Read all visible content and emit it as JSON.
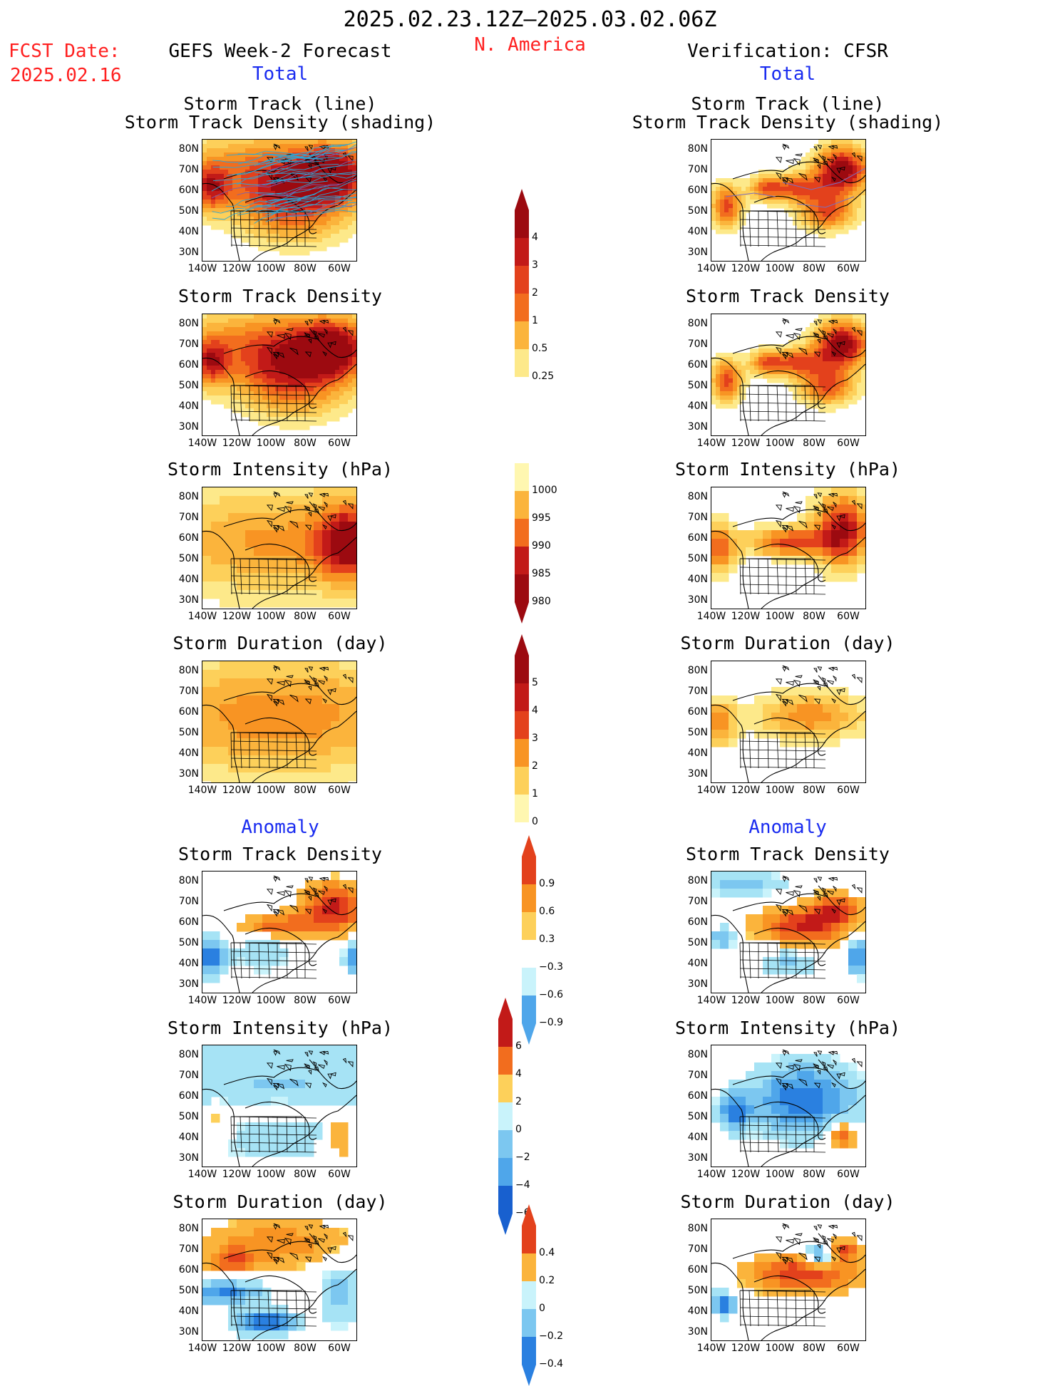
{
  "header": {
    "date_range": "2025.02.23.12Z–2025.03.02.06Z",
    "fcst_label": "FCST Date:",
    "fcst_date": "2025.02.16",
    "region": "N. America",
    "left_title": "GEFS Week-2 Forecast",
    "right_title": "Verification: CFSR",
    "total_label_left": "Total",
    "total_label_right": "Total",
    "anomaly_label_left": "Anomaly",
    "anomaly_label_right": "Anomaly"
  },
  "panel_titles": {
    "track_line": "Storm Track (line)",
    "track_density_shading": "Storm Track Density (shading)",
    "track_density": "Storm Track Density",
    "intensity": "Storm Intensity (hPa)",
    "duration": "Storm Duration (day)"
  },
  "axes": {
    "lat_labels": [
      "80N",
      "70N",
      "60N",
      "50N",
      "40N",
      "30N"
    ],
    "lon_labels": [
      "140W",
      "120W",
      "100W",
      "80W",
      "60W"
    ]
  },
  "colorbars": {
    "track_density_total": [
      "4",
      "3",
      "2",
      "1",
      "0.5",
      "0.25"
    ],
    "intensity_total": [
      "1000",
      "995",
      "990",
      "985",
      "980"
    ],
    "duration_total": [
      "5",
      "4",
      "3",
      "2",
      "1",
      "0"
    ],
    "track_density_anom": [
      "0.9",
      "0.6",
      "0.3",
      "−0.3",
      "−0.6",
      "−0.9"
    ],
    "intensity_anom": [
      "6",
      "4",
      "2",
      "0",
      "−2",
      "−4",
      "−6"
    ],
    "duration_anom": [
      "0.4",
      "0.2",
      "0",
      "−0.2",
      "−0.4"
    ]
  },
  "colors": {
    "warm": [
      "#fff7b0",
      "#fde98a",
      "#fdd05a",
      "#fbb43c",
      "#f89423",
      "#f26d1e",
      "#e3411c",
      "#c21a18",
      "#9c0a10"
    ],
    "cool": [
      "#c9f3fb",
      "#a6e3f5",
      "#7cc7f0",
      "#4fa6ea",
      "#2a80e0",
      "#1860cf"
    ],
    "title_red": "#ff2020",
    "title_blue": "#1a2cf0",
    "track_line": "#2aa8d8"
  }
}
